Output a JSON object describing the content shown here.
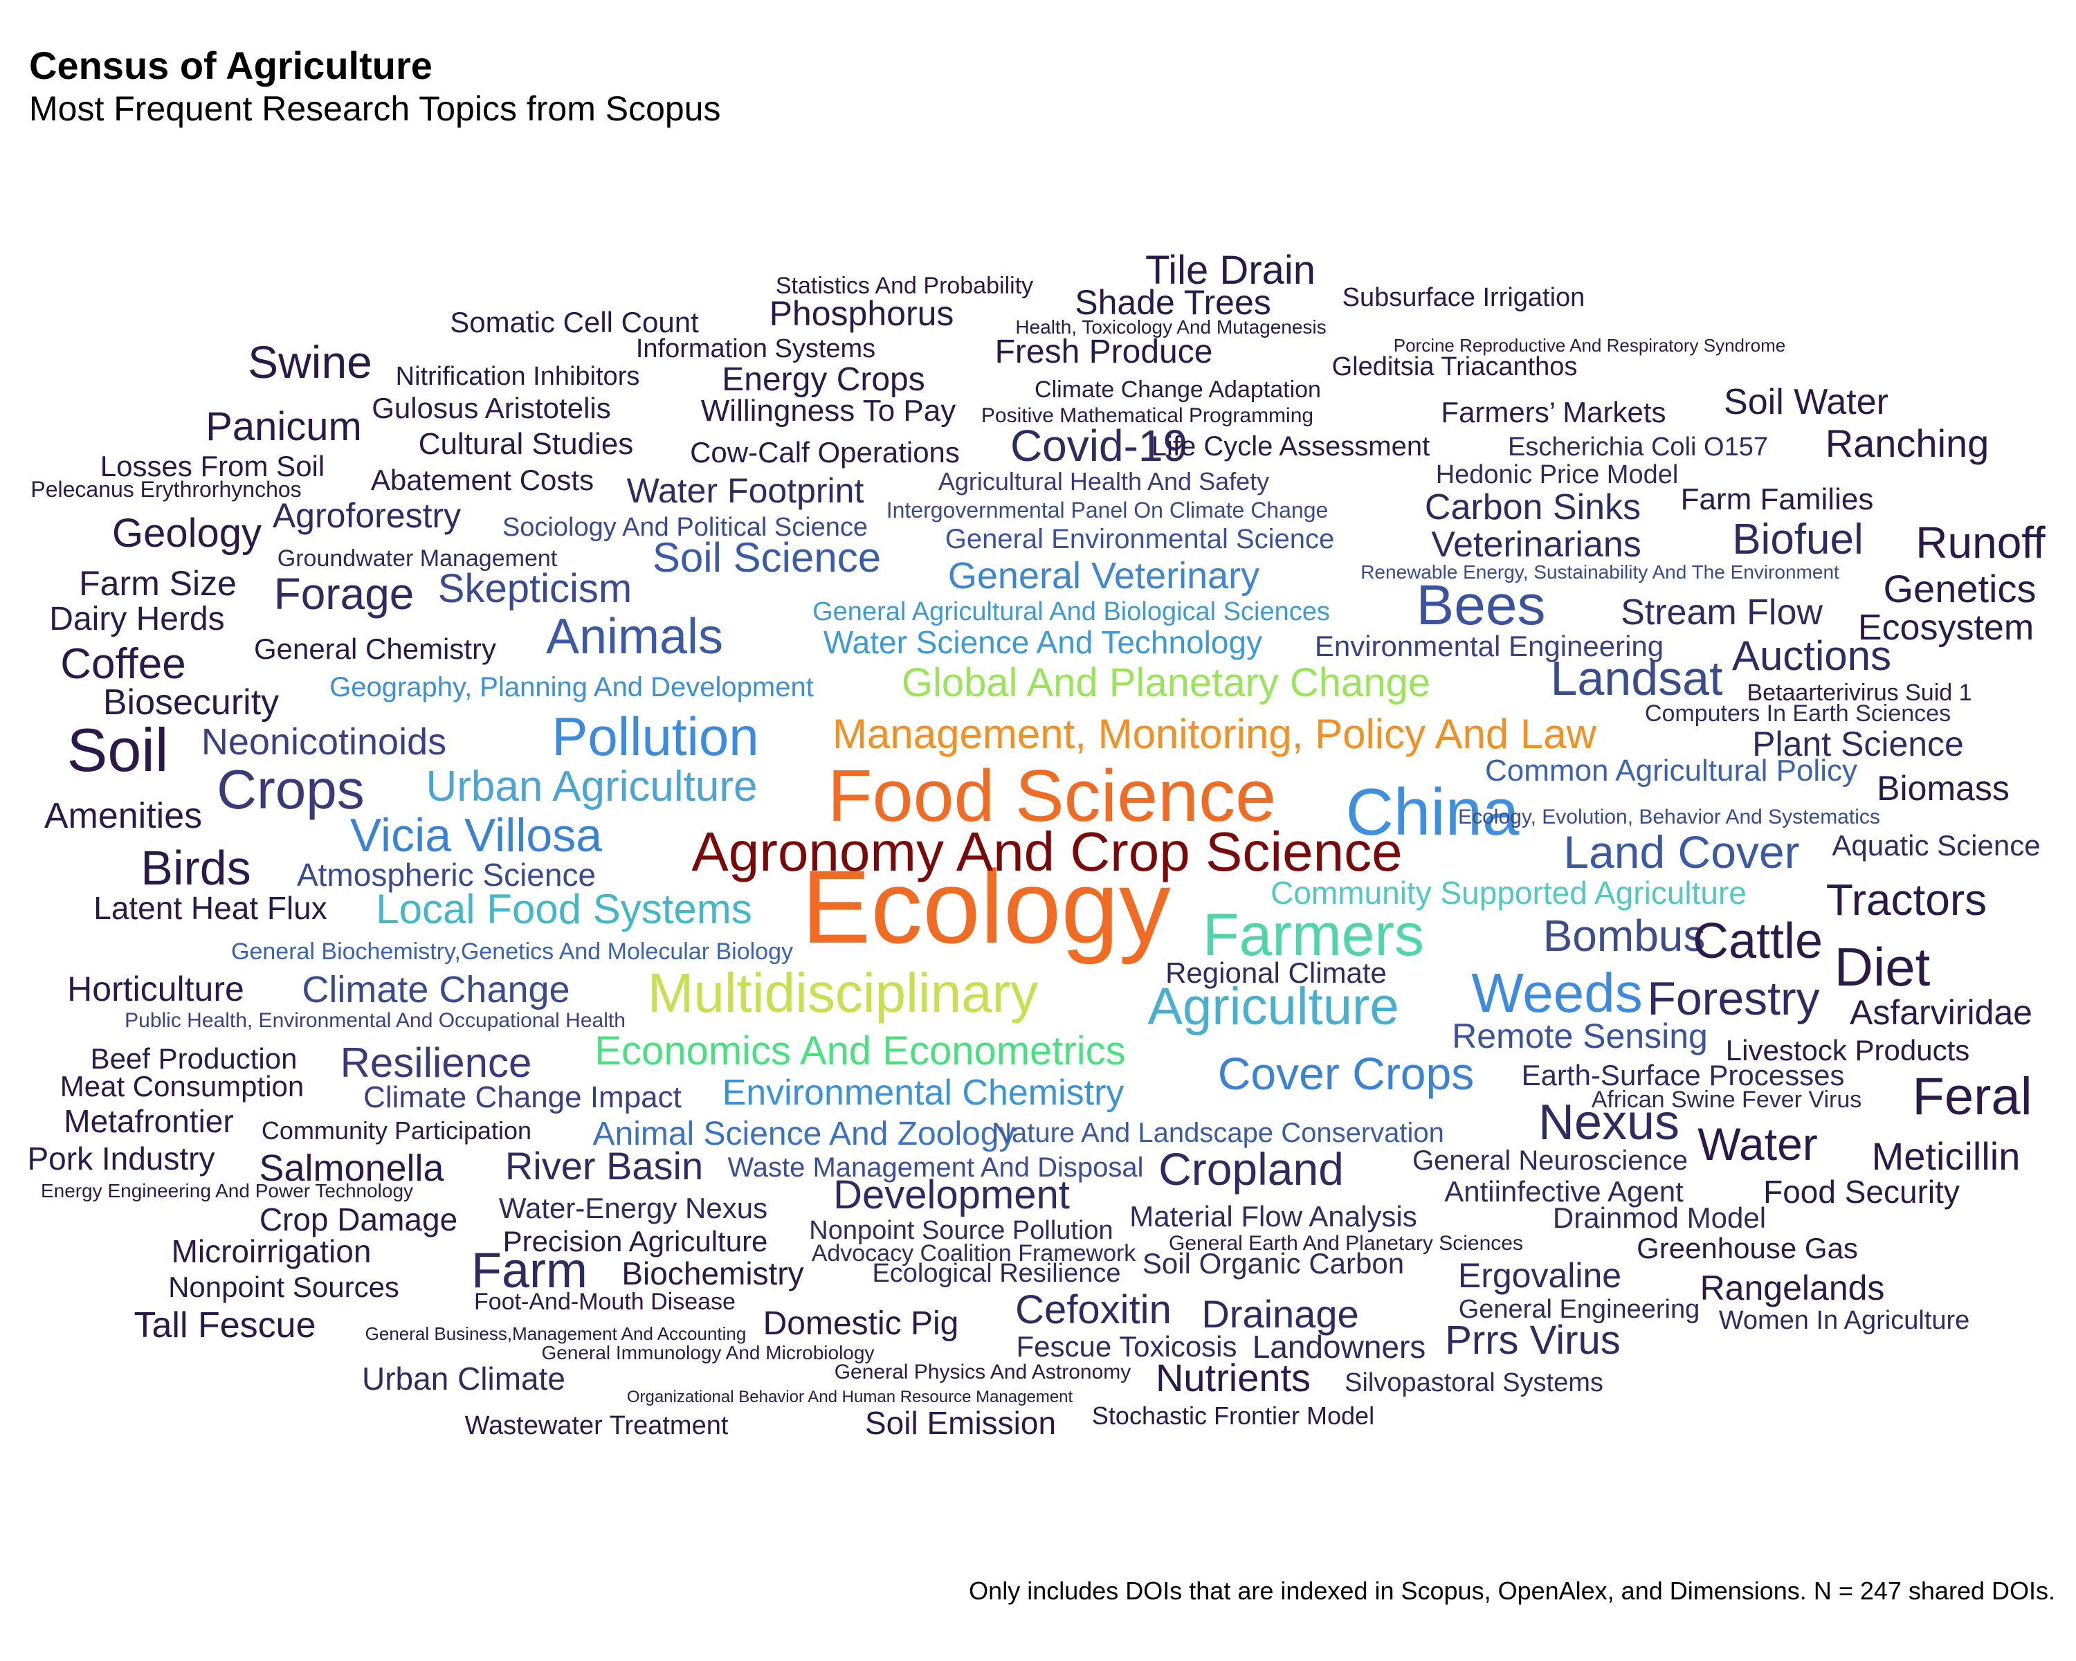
{
  "chart_data": {
    "type": "wordcloud",
    "title": "Census of Agriculture",
    "subtitle": "Most Frequent Research Topics from Scopus",
    "caption": "Only includes DOIs that are indexed in Scopus, OpenAlex, and Dimensions. N = 247 shared DOIs.",
    "words": [
      {
        "text": "Ecology",
        "weight": 10,
        "color": "#f26b22"
      },
      {
        "text": "Food Science",
        "weight": 6.8,
        "color": "#f26b22"
      },
      {
        "text": "Agronomy And Crop Science",
        "weight": 5.0,
        "color": "#7a0a0a"
      },
      {
        "text": "China",
        "weight": 6.0,
        "color": "#3f8fe0"
      },
      {
        "text": "Farmers",
        "weight": 5.2,
        "color": "#4fd6a6"
      },
      {
        "text": "Multidisciplinary",
        "weight": 4.8,
        "color": "#c7e050"
      },
      {
        "text": "Management, Monitoring, Policy And Law",
        "weight": 3.6,
        "color": "#f39021"
      },
      {
        "text": "Global And Planetary Change",
        "weight": 3.4,
        "color": "#9ae45a"
      },
      {
        "text": "Pollution",
        "weight": 4.4,
        "color": "#3d8be0"
      },
      {
        "text": "Agriculture",
        "weight": 4.4,
        "color": "#47b0cf"
      },
      {
        "text": "Weeds",
        "weight": 4.6,
        "color": "#3d8be0"
      },
      {
        "text": "Economics And Econometrics",
        "weight": 3.4,
        "color": "#49e080"
      },
      {
        "text": "Urban Agriculture",
        "weight": 3.6,
        "color": "#4aa4d6"
      },
      {
        "text": "Vicia Villosa",
        "weight": 4.0,
        "color": "#3a82d6"
      },
      {
        "text": "Local Food Systems",
        "weight": 3.6,
        "color": "#43b7c8"
      },
      {
        "text": "Cover Crops",
        "weight": 3.8,
        "color": "#3a82d6"
      },
      {
        "text": "Environmental Chemistry",
        "weight": 3.2,
        "color": "#3a93d8"
      },
      {
        "text": "Community Supported Agriculture",
        "weight": 2.8,
        "color": "#52c9c0"
      },
      {
        "text": "Animals",
        "weight": 4.2,
        "color": "#3a5aa6"
      },
      {
        "text": "Bees",
        "weight": 4.6,
        "color": "#3a52a0"
      },
      {
        "text": "Landsat",
        "weight": 4.0,
        "color": "#3a4c8e"
      },
      {
        "text": "Land Cover",
        "weight": 3.8,
        "color": "#3a5aa6"
      },
      {
        "text": "Bombus",
        "weight": 3.6,
        "color": "#3c4d8e"
      },
      {
        "text": "Soil",
        "weight": 5.0,
        "color": "#2a1a4a"
      },
      {
        "text": "Crops",
        "weight": 4.6,
        "color": "#3a3a7a"
      },
      {
        "text": "Birds",
        "weight": 4.0,
        "color": "#2a1a4a"
      },
      {
        "text": "General Veterinary",
        "weight": 3.2,
        "color": "#3c86d4"
      },
      {
        "text": "Water Science And Technology",
        "weight": 2.6,
        "color": "#3c9ad8"
      },
      {
        "text": "General Agricultural And Biological Sciences",
        "weight": 2.2,
        "color": "#3c9ad8"
      },
      {
        "text": "Geography, Planning And Development",
        "weight": 2.3,
        "color": "#3c90d6"
      },
      {
        "text": "Soil Science",
        "weight": 3.4,
        "color": "#3a5ba8"
      },
      {
        "text": "Skepticism",
        "weight": 3.4,
        "color": "#3a4a92"
      },
      {
        "text": "Atmospheric Science",
        "weight": 2.8,
        "color": "#3a4a92"
      },
      {
        "text": "Climate Change",
        "weight": 3.2,
        "color": "#3a4a92"
      },
      {
        "text": "Animal Science And Zoology",
        "weight": 2.8,
        "color": "#3a72c4"
      },
      {
        "text": "Common Agricultural Policy",
        "weight": 2.6,
        "color": "#3a62b4"
      },
      {
        "text": "Remote Sensing",
        "weight": 3.0,
        "color": "#3a52a0"
      },
      {
        "text": "Nature And Landscape Conservation",
        "weight": 2.4,
        "color": "#3a5ba8"
      },
      {
        "text": "Waste Management And Disposal",
        "weight": 2.4,
        "color": "#3a4c9a"
      },
      {
        "text": "Climate Change Impact",
        "weight": 2.6,
        "color": "#3a3f86"
      },
      {
        "text": "Resilience",
        "weight": 3.4,
        "color": "#3a3a7a"
      },
      {
        "text": "Neonicotinoids",
        "weight": 3.2,
        "color": "#3a3f86"
      },
      {
        "text": "General Environmental Science",
        "weight": 2.4,
        "color": "#3a52a0"
      },
      {
        "text": "Sociology And Political Science",
        "weight": 2.2,
        "color": "#3a4a92"
      },
      {
        "text": "Environmental Engineering",
        "weight": 2.4,
        "color": "#3a3f86"
      },
      {
        "text": "General Biochemistry,Genetics And Molecular Biology",
        "weight": 2.0,
        "color": "#3a62b4"
      },
      {
        "text": "Public Health, Environmental And Occupational Health",
        "weight": 1.8,
        "color": "#3a3f86"
      },
      {
        "text": "Intergovernmental Panel On Climate Change",
        "weight": 1.9,
        "color": "#3a4a92"
      },
      {
        "text": "Agricultural Health And Safety",
        "weight": 2.1,
        "color": "#3a3a7a"
      },
      {
        "text": "Diet",
        "weight": 4.4,
        "color": "#2a1a4a"
      },
      {
        "text": "Feral",
        "weight": 4.2,
        "color": "#2a1a4a"
      },
      {
        "text": "Nexus",
        "weight": 4.2,
        "color": "#2e2a62"
      },
      {
        "text": "Cattle",
        "weight": 4.0,
        "color": "#2a1a4a"
      },
      {
        "text": "Forestry",
        "weight": 3.8,
        "color": "#2e2a62"
      },
      {
        "text": "Farm",
        "weight": 4.2,
        "color": "#2e2a62"
      },
      {
        "text": "Cropland",
        "weight": 3.8,
        "color": "#2e2a62"
      },
      {
        "text": "Water",
        "weight": 3.8,
        "color": "#2a1a4a"
      },
      {
        "text": "Covid-19",
        "weight": 3.8,
        "color": "#2e2a62"
      },
      {
        "text": "Swine",
        "weight": 3.8,
        "color": "#2a1a4a"
      },
      {
        "text": "Tractors",
        "weight": 3.6,
        "color": "#2a1a4a"
      },
      {
        "text": "Runoff",
        "weight": 3.6,
        "color": "#2a1a4a"
      },
      {
        "text": "Biofuel",
        "weight": 3.4,
        "color": "#2e2a62"
      },
      {
        "text": "Auctions",
        "weight": 3.4,
        "color": "#2e2a62"
      },
      {
        "text": "Coffee",
        "weight": 3.6,
        "color": "#2a1a4a"
      },
      {
        "text": "Panicum",
        "weight": 3.4,
        "color": "#2a1a4a"
      },
      {
        "text": "Development",
        "weight": 3.4,
        "color": "#2e2a62"
      },
      {
        "text": "Prrs Virus",
        "weight": 3.4,
        "color": "#2e2a62"
      },
      {
        "text": "Tile Drain",
        "weight": 3.2,
        "color": "#2a1a4a"
      },
      {
        "text": "Forage",
        "weight": 3.4,
        "color": "#2e2a62"
      },
      {
        "text": "Geology",
        "weight": 3.2,
        "color": "#2a1a4a"
      },
      {
        "text": "Genetics",
        "weight": 3.2,
        "color": "#2a1a4a"
      },
      {
        "text": "Ranching",
        "weight": 3.2,
        "color": "#2a1a4a"
      },
      {
        "text": "Meticillin",
        "weight": 3.2,
        "color": "#2a1a4a"
      },
      {
        "text": "Cefoxitin",
        "weight": 3.2,
        "color": "#2e2a62"
      },
      {
        "text": "Drainage",
        "weight": 3.2,
        "color": "#2e2a62"
      },
      {
        "text": "Nutrients",
        "weight": 3.2,
        "color": "#2a1a4a"
      },
      {
        "text": "River Basin",
        "weight": 3.2,
        "color": "#2e2a62"
      },
      {
        "text": "Salmonella",
        "weight": 3.0,
        "color": "#2a1a4a"
      },
      {
        "text": "Veterinarians",
        "weight": 3.0,
        "color": "#2e2a62"
      },
      {
        "text": "Carbon Sinks",
        "weight": 3.0,
        "color": "#2e2a62"
      },
      {
        "text": "Biomass",
        "weight": 3.0,
        "color": "#2a1a4a"
      },
      {
        "text": "Ecosystem",
        "weight": 3.0,
        "color": "#2a1a4a"
      },
      {
        "text": "Stream Flow",
        "weight": 3.0,
        "color": "#2e2a62"
      },
      {
        "text": "Plant Science",
        "weight": 2.8,
        "color": "#2e2a62"
      },
      {
        "text": "Soil Water",
        "weight": 3.0,
        "color": "#2a1a4a"
      },
      {
        "text": "Asfarviridae",
        "weight": 2.8,
        "color": "#2a1a4a"
      },
      {
        "text": "Ergovaline",
        "weight": 2.8,
        "color": "#2e2a62"
      },
      {
        "text": "Rangelands",
        "weight": 2.8,
        "color": "#2a1a4a"
      },
      {
        "text": "Amenities",
        "weight": 3.0,
        "color": "#2a1a4a"
      },
      {
        "text": "Horticulture",
        "weight": 3.0,
        "color": "#2a1a4a"
      },
      {
        "text": "Biosecurity",
        "weight": 3.0,
        "color": "#2a1a4a"
      },
      {
        "text": "Tall Fescue",
        "weight": 3.0,
        "color": "#2a1a4a"
      },
      {
        "text": "Phosphorus",
        "weight": 2.8,
        "color": "#2a1a4a"
      },
      {
        "text": "Shade Trees",
        "weight": 2.8,
        "color": "#2a1a4a"
      },
      {
        "text": "Farm Size",
        "weight": 2.8,
        "color": "#2a1a4a"
      },
      {
        "text": "Dairy Herds",
        "weight": 2.6,
        "color": "#2a1a4a"
      },
      {
        "text": "Latent Heat Flux",
        "weight": 2.6,
        "color": "#2a1a4a"
      },
      {
        "text": "Agroforestry",
        "weight": 2.8,
        "color": "#2e2a62"
      },
      {
        "text": "Water Footprint",
        "weight": 2.8,
        "color": "#2e2a62"
      },
      {
        "text": "Energy Crops",
        "weight": 2.6,
        "color": "#2a1a4a"
      },
      {
        "text": "Domestic Pig",
        "weight": 2.6,
        "color": "#2a1a4a"
      },
      {
        "text": "Fresh Produce",
        "weight": 2.6,
        "color": "#2a1a4a"
      },
      {
        "text": "Crop Damage",
        "weight": 2.6,
        "color": "#2a1a4a"
      },
      {
        "text": "Microirrigation",
        "weight": 2.6,
        "color": "#2a1a4a"
      },
      {
        "text": "Metafrontier",
        "weight": 2.6,
        "color": "#2a1a4a"
      },
      {
        "text": "Pork Industry",
        "weight": 2.6,
        "color": "#2a1a4a"
      },
      {
        "text": "Urban Climate",
        "weight": 2.6,
        "color": "#2e2a62"
      },
      {
        "text": "Biochemistry",
        "weight": 2.6,
        "color": "#2a1a4a"
      },
      {
        "text": "Landowners",
        "weight": 2.6,
        "color": "#2e2a62"
      },
      {
        "text": "Food Security",
        "weight": 2.6,
        "color": "#2a1a4a"
      },
      {
        "text": "Livestock Products",
        "weight": 2.4,
        "color": "#2a1a4a"
      },
      {
        "text": "Farm Families",
        "weight": 2.4,
        "color": "#2a1a4a"
      },
      {
        "text": "Cultural Studies",
        "weight": 2.4,
        "color": "#2a1a4a"
      },
      {
        "text": "Willingness To Pay",
        "weight": 2.4,
        "color": "#2a1a4a"
      },
      {
        "text": "Cow-Calf Operations",
        "weight": 2.4,
        "color": "#2a1a4a"
      },
      {
        "text": "Gulosus Aristotelis",
        "weight": 2.4,
        "color": "#2a1a4a"
      },
      {
        "text": "Abatement Costs",
        "weight": 2.4,
        "color": "#2a1a4a"
      },
      {
        "text": "Losses From Soil",
        "weight": 2.4,
        "color": "#2a1a4a"
      },
      {
        "text": "Somatic Cell Count",
        "weight": 2.4,
        "color": "#2a1a4a"
      },
      {
        "text": "General Chemistry",
        "weight": 2.4,
        "color": "#2a1a4a"
      },
      {
        "text": "Beef Production",
        "weight": 2.4,
        "color": "#2a1a4a"
      },
      {
        "text": "Meat Consumption",
        "weight": 2.4,
        "color": "#2a1a4a"
      },
      {
        "text": "Water-Energy Nexus",
        "weight": 2.4,
        "color": "#2e2a62"
      },
      {
        "text": "Precision Agriculture",
        "weight": 2.4,
        "color": "#2a1a4a"
      },
      {
        "text": "Nonpoint Sources",
        "weight": 2.4,
        "color": "#2a1a4a"
      },
      {
        "text": "Drainmod Model",
        "weight": 2.4,
        "color": "#2e2a62"
      },
      {
        "text": "Greenhouse Gas",
        "weight": 2.4,
        "color": "#2a1a4a"
      },
      {
        "text": "Antiinfective Agent",
        "weight": 2.4,
        "color": "#2e2a62"
      },
      {
        "text": "General Neuroscience",
        "weight": 2.4,
        "color": "#2e2a62"
      },
      {
        "text": "Soil Organic Carbon",
        "weight": 2.4,
        "color": "#2e2a62"
      },
      {
        "text": "Material Flow Analysis",
        "weight": 2.4,
        "color": "#2e2a62"
      },
      {
        "text": "Earth-Surface Processes",
        "weight": 2.4,
        "color": "#2e2a62"
      },
      {
        "text": "Fescue Toxicosis",
        "weight": 2.4,
        "color": "#2e2a62"
      },
      {
        "text": "Soil Emission",
        "weight": 2.6,
        "color": "#2a1a4a"
      },
      {
        "text": "Aquatic Science",
        "weight": 2.4,
        "color": "#2e2a62"
      },
      {
        "text": "Regional Climate",
        "weight": 2.4,
        "color": "#2e2a62"
      },
      {
        "text": "Farmers’ Markets",
        "weight": 2.4,
        "color": "#2a1a4a"
      },
      {
        "text": "Life Cycle Assessment",
        "weight": 2.4,
        "color": "#2a1a4a"
      },
      {
        "text": "Hedonic Price Model",
        "weight": 2.2,
        "color": "#2e2a62"
      },
      {
        "text": "Escherichia Coli O157",
        "weight": 2.2,
        "color": "#2e2a62"
      },
      {
        "text": "Gleditsia Triacanthos",
        "weight": 2.2,
        "color": "#2a1a4a"
      },
      {
        "text": "Subsurface Irrigation",
        "weight": 2.2,
        "color": "#2a1a4a"
      },
      {
        "text": "Information Systems",
        "weight": 2.2,
        "color": "#2a1a4a"
      },
      {
        "text": "Nitrification Inhibitors",
        "weight": 2.2,
        "color": "#2a1a4a"
      },
      {
        "text": "Climate Change Adaptation",
        "weight": 2.0,
        "color": "#2a1a4a"
      },
      {
        "text": "Statistics And Probability",
        "weight": 2.0,
        "color": "#2a1a4a"
      },
      {
        "text": "Groundwater Management",
        "weight": 2.0,
        "color": "#2e2a62"
      },
      {
        "text": "Computers In Earth Sciences",
        "weight": 2.0,
        "color": "#2e2a62"
      },
      {
        "text": "Betaarterivirus Suid 1",
        "weight": 2.0,
        "color": "#2a1a4a"
      },
      {
        "text": "Pelecanus Erythrorhynchos",
        "weight": 2.0,
        "color": "#2a1a4a"
      },
      {
        "text": "African Swine Fever Virus",
        "weight": 2.0,
        "color": "#2e2a62"
      },
      {
        "text": "Community Participation",
        "weight": 2.0,
        "color": "#2a1a4a"
      },
      {
        "text": "Nonpoint Source Pollution",
        "weight": 2.2,
        "color": "#2e2a62"
      },
      {
        "text": "Advocacy Coalition Framework",
        "weight": 2.0,
        "color": "#2e2a62"
      },
      {
        "text": "Ecological Resilience",
        "weight": 2.2,
        "color": "#2e2a62"
      },
      {
        "text": "General Engineering",
        "weight": 2.2,
        "color": "#2e2a62"
      },
      {
        "text": "Women In Agriculture",
        "weight": 2.2,
        "color": "#2e2a62"
      },
      {
        "text": "Foot-And-Mouth Disease",
        "weight": 2.0,
        "color": "#2a1a4a"
      },
      {
        "text": "Silvopastoral Systems",
        "weight": 2.2,
        "color": "#2e2a62"
      },
      {
        "text": "Wastewater Treatment",
        "weight": 2.2,
        "color": "#2a1a4a"
      },
      {
        "text": "Stochastic Frontier Model",
        "weight": 2.2,
        "color": "#2a1a4a"
      },
      {
        "text": "Positive Mathematical Programming",
        "weight": 1.9,
        "color": "#2a1a4a"
      },
      {
        "text": "Health, Toxicology And Mutagenesis",
        "weight": 1.8,
        "color": "#2a1a4a"
      },
      {
        "text": "Porcine Reproductive And Respiratory Syndrome",
        "weight": 1.6,
        "color": "#2a1a4a"
      },
      {
        "text": "Ecology, Evolution, Behavior And Systematics",
        "weight": 1.8,
        "color": "#3a4a92"
      },
      {
        "text": "Renewable Energy, Sustainability And The Environment",
        "weight": 1.7,
        "color": "#3a4a92"
      },
      {
        "text": "Energy Engineering And Power Technology",
        "weight": 1.7,
        "color": "#2a1a4a"
      },
      {
        "text": "General Earth And Planetary Sciences",
        "weight": 1.8,
        "color": "#2a1a4a"
      },
      {
        "text": "General Business,Management And Accounting",
        "weight": 1.7,
        "color": "#2a1a4a"
      },
      {
        "text": "General Immunology And Microbiology",
        "weight": 1.8,
        "color": "#2a1a4a"
      },
      {
        "text": "General Physics And Astronomy",
        "weight": 1.9,
        "color": "#2a1a4a"
      },
      {
        "text": "Organizational Behavior And Human Resource Management",
        "weight": 1.5,
        "color": "#2a1a4a"
      }
    ]
  }
}
